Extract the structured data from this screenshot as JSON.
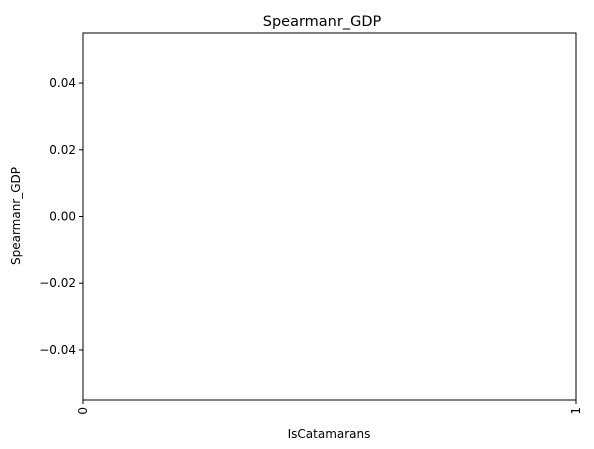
{
  "chart_data": {
    "type": "bar",
    "title": "Spearmanr_GDP",
    "xlabel": "IsCatamarans",
    "ylabel": "Spearmanr_GDP",
    "categories": [
      "0",
      "1"
    ],
    "series": [
      {
        "values": [
          0,
          0
        ]
      }
    ],
    "ylim": [
      -0.055,
      0.055
    ],
    "yticks": [
      -0.04,
      -0.02,
      0.0,
      0.02,
      0.04
    ],
    "ytick_labels": [
      "−0.04",
      "−0.02",
      "0.00",
      "0.02",
      "0.04"
    ],
    "xtick_labels": [
      "0",
      "1"
    ],
    "xtick_rotation": "vertical",
    "grid": false,
    "legend": "none"
  }
}
